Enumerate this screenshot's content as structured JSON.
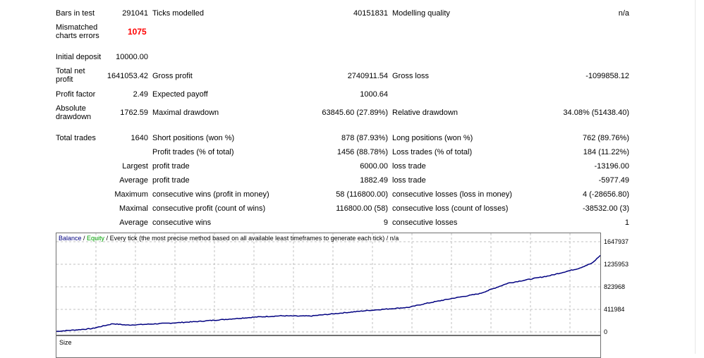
{
  "report": {
    "bars_in_test_label": "Bars in test",
    "bars_in_test": "291041",
    "ticks_modelled_label": "Ticks modelled",
    "ticks_modelled": "40151831",
    "modelling_quality_label": "Modelling quality",
    "modelling_quality": "n/a",
    "mismatched_label": "Mismatched charts errors",
    "mismatched": "1075",
    "initial_deposit_label": "Initial deposit",
    "initial_deposit": "10000.00",
    "total_net_profit_label": "Total net profit",
    "total_net_profit": "1641053.42",
    "gross_profit_label": "Gross profit",
    "gross_profit": "2740911.54",
    "gross_loss_label": "Gross loss",
    "gross_loss": "-1099858.12",
    "profit_factor_label": "Profit factor",
    "profit_factor": "2.49",
    "expected_payoff_label": "Expected payoff",
    "expected_payoff": "1000.64",
    "absolute_drawdown_label": "Absolute drawdown",
    "absolute_drawdown": "1762.59",
    "maximal_drawdown_label": "Maximal drawdown",
    "maximal_drawdown": "63845.60 (27.89%)",
    "relative_drawdown_label": "Relative drawdown",
    "relative_drawdown": "34.08% (51438.40)",
    "total_trades_label": "Total trades",
    "total_trades": "1640",
    "short_positions_label": "Short positions (won %)",
    "short_positions": "878 (87.93%)",
    "long_positions_label": "Long positions (won %)",
    "long_positions": "762 (89.76%)",
    "profit_trades_label": "Profit trades (% of total)",
    "profit_trades": "1456 (88.78%)",
    "loss_trades_label": "Loss trades (% of total)",
    "loss_trades": "184 (11.22%)",
    "largest_label": "Largest",
    "largest_profit_label": "profit trade",
    "largest_profit": "6000.00",
    "largest_loss_label": "loss trade",
    "largest_loss": "-13196.00",
    "average_label": "Average",
    "average_profit_label": "profit trade",
    "average_profit": "1882.49",
    "average_loss_label": "loss trade",
    "average_loss": "-5977.49",
    "maximum_label": "Maximum",
    "max_cons_wins_label": "consecutive wins (profit in money)",
    "max_cons_wins": "58 (116800.00)",
    "max_cons_losses_label": "consecutive losses (loss in money)",
    "max_cons_losses": "4 (-28656.80)",
    "maximal_label": "Maximal",
    "maximal_cons_profit_label": "consecutive profit (count of wins)",
    "maximal_cons_profit": "116800.00 (58)",
    "maximal_cons_loss_label": "consecutive loss (count of losses)",
    "maximal_cons_loss": "-38532.00 (3)",
    "avg_cons_label": "Average",
    "avg_cons_wins_label": "consecutive wins",
    "avg_cons_wins": "9",
    "avg_cons_losses_label": "consecutive losses",
    "avg_cons_losses": "1"
  },
  "chart_legend": {
    "balance": "Balance",
    "sep1": " / ",
    "equity": "Equity",
    "rest": " / Every tick (the most precise method based on all available least timeframes to generate each tick) / n/a"
  },
  "size_panel_label": "Size",
  "colors": {
    "balance": "#000080",
    "equity": "#00a000",
    "highlight": "#ff0000",
    "grid": "#c0c0c0"
  },
  "chart_data": {
    "type": "line",
    "title": "",
    "yticks": [
      "1647937",
      "1235953",
      "823968",
      "411984",
      "0"
    ],
    "ylim": [
      0,
      1647937
    ],
    "xlabel": "",
    "ylabel": "",
    "grid": true,
    "series": [
      {
        "name": "Balance",
        "x": [
          0,
          20,
          50,
          80,
          100,
          120,
          160,
          200,
          240,
          280,
          320,
          340,
          360,
          400,
          440,
          470,
          500,
          520,
          560,
          600,
          640,
          700,
          740,
          760,
          771
        ],
        "values": [
          10000,
          30000,
          60000,
          150000,
          125000,
          135000,
          160000,
          190000,
          230000,
          270000,
          295000,
          290000,
          290000,
          340000,
          390000,
          420000,
          450000,
          510000,
          610000,
          700000,
          890000,
          1030000,
          1160000,
          1260000,
          1400000
        ]
      }
    ]
  }
}
